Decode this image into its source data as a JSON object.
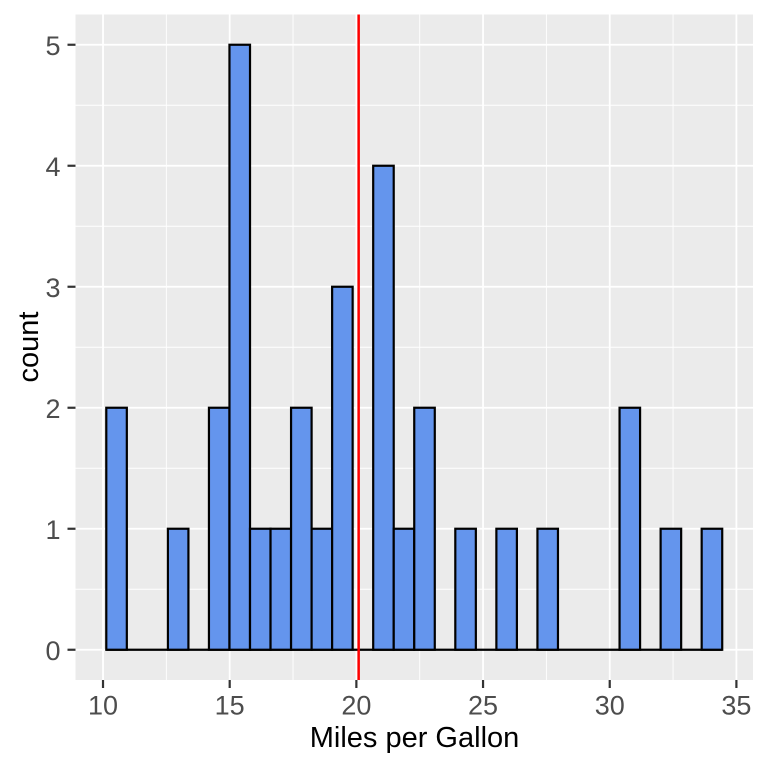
{
  "chart_data": {
    "type": "bar",
    "subtype": "histogram",
    "title": "",
    "xlabel": "Miles per Gallon",
    "ylabel": "count",
    "x_ticks": [
      10,
      15,
      20,
      25,
      30,
      35
    ],
    "y_ticks": [
      0,
      1,
      2,
      3,
      4,
      5
    ],
    "x_minor_ticks": [
      12.5,
      17.5,
      22.5,
      27.5,
      32.5
    ],
    "y_minor_ticks": [
      0.5,
      1.5,
      2.5,
      3.5,
      4.5
    ],
    "x_domain": [
      8.914,
      35.655
    ],
    "y_domain": [
      -0.25,
      5.25
    ],
    "binwidth": 0.8103,
    "bins": [
      {
        "x0": 10.129,
        "x1": 10.94,
        "count": 2
      },
      {
        "x0": 10.94,
        "x1": 11.75,
        "count": 0
      },
      {
        "x0": 11.75,
        "x1": 12.56,
        "count": 0
      },
      {
        "x0": 12.56,
        "x1": 13.371,
        "count": 1
      },
      {
        "x0": 13.371,
        "x1": 14.181,
        "count": 0
      },
      {
        "x0": 14.181,
        "x1": 14.991,
        "count": 2
      },
      {
        "x0": 14.991,
        "x1": 15.802,
        "count": 5
      },
      {
        "x0": 15.802,
        "x1": 16.612,
        "count": 1
      },
      {
        "x0": 16.612,
        "x1": 17.422,
        "count": 1
      },
      {
        "x0": 17.422,
        "x1": 18.233,
        "count": 2
      },
      {
        "x0": 18.233,
        "x1": 19.043,
        "count": 1
      },
      {
        "x0": 19.043,
        "x1": 19.853,
        "count": 3
      },
      {
        "x0": 19.853,
        "x1": 20.664,
        "count": 0
      },
      {
        "x0": 20.664,
        "x1": 21.474,
        "count": 4
      },
      {
        "x0": 21.474,
        "x1": 22.284,
        "count": 1
      },
      {
        "x0": 22.284,
        "x1": 23.095,
        "count": 2
      },
      {
        "x0": 23.095,
        "x1": 23.905,
        "count": 0
      },
      {
        "x0": 23.905,
        "x1": 24.716,
        "count": 1
      },
      {
        "x0": 24.716,
        "x1": 25.526,
        "count": 0
      },
      {
        "x0": 25.526,
        "x1": 26.336,
        "count": 1
      },
      {
        "x0": 26.336,
        "x1": 27.147,
        "count": 0
      },
      {
        "x0": 27.147,
        "x1": 27.957,
        "count": 1
      },
      {
        "x0": 27.957,
        "x1": 28.767,
        "count": 0
      },
      {
        "x0": 28.767,
        "x1": 29.578,
        "count": 0
      },
      {
        "x0": 29.578,
        "x1": 30.388,
        "count": 0
      },
      {
        "x0": 30.388,
        "x1": 31.198,
        "count": 2
      },
      {
        "x0": 31.198,
        "x1": 32.009,
        "count": 0
      },
      {
        "x0": 32.009,
        "x1": 32.819,
        "count": 1
      },
      {
        "x0": 32.819,
        "x1": 33.629,
        "count": 0
      },
      {
        "x0": 33.629,
        "x1": 34.44,
        "count": 1
      }
    ],
    "vline": {
      "x": 20.09,
      "color": "#FF0000"
    },
    "grid": "on",
    "legend_position": "none",
    "colors": {
      "background": "#FFFFFF",
      "panel_bg": "#EBEBEB",
      "grid": "#FFFFFF",
      "bar_fill": "#6495ED",
      "bar_stroke": "#000000",
      "tick": "#333333",
      "tick_label": "#4D4D4D",
      "axis_title": "#000000"
    }
  }
}
